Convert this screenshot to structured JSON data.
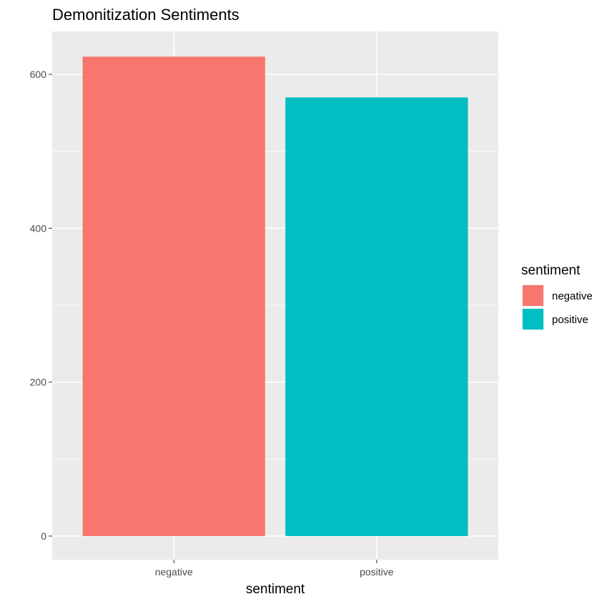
{
  "chart_data": {
    "type": "bar",
    "title": "Demonitization Sentiments",
    "xlabel": "sentiment",
    "ylabel": "",
    "categories": [
      "negative",
      "positive"
    ],
    "values": [
      623,
      570
    ],
    "colors": [
      "#F8766D",
      "#00BFC4"
    ],
    "ylim": [
      0,
      650
    ],
    "yticks": [
      0,
      200,
      400,
      600
    ],
    "grid": true,
    "panel_background": "#EBEBEB",
    "legend": {
      "title": "sentiment",
      "position": "right",
      "entries": [
        "negative",
        "positive"
      ]
    }
  }
}
